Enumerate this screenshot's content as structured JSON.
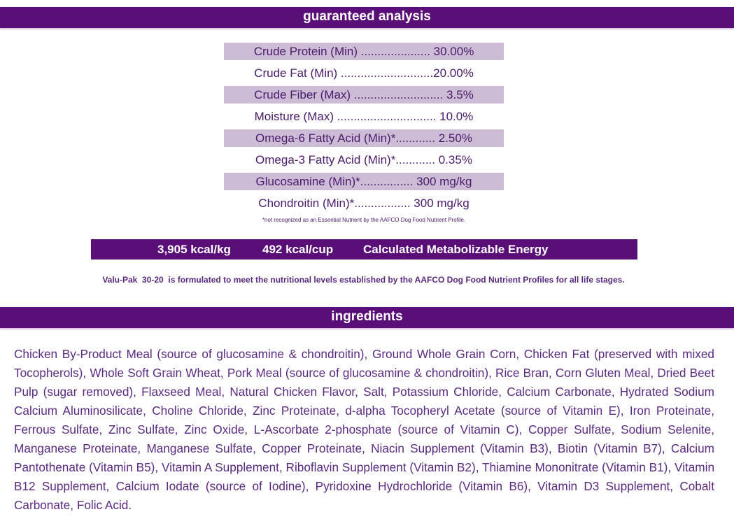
{
  "analysis": {
    "title": "guaranteed analysis",
    "rows": [
      {
        "text": "Crude Protein (Min) ..................... 30.00%"
      },
      {
        "text": "Crude Fat (Min) ............................20.00%"
      },
      {
        "text": "Crude Fiber (Max) ........................... 3.5%"
      },
      {
        "text": "Moisture (Max) ..............................  10.0%"
      },
      {
        "text": "Omega-6 Fatty Acid (Min)*............  2.50%"
      },
      {
        "text": "Omega-3 Fatty Acid (Min)*............  0.35%"
      },
      {
        "text": "Glucosamine (Min)*................ 300 mg/kg"
      },
      {
        "text": "Chondroitin (Min)*................. 300 mg/kg"
      }
    ],
    "footnote": "*not recognized as an Essential Nutrient by the AAFCO Dog Food Nutrient Profile."
  },
  "energy": {
    "kcal_per_kg": "3,905 kcal/kg",
    "kcal_per_cup": "492 kcal/cup",
    "label": "Calculated Metabolizable Energy"
  },
  "statement": "Valu-Pak  30-20  is formulated to meet the nutritional levels established by the AAFCO Dog Food Nutrient Profiles for all life stages.",
  "ingredients": {
    "title": "ingredients",
    "text": "Chicken By-Product Meal (source of glucosamine & chondroitin), Ground Whole Grain Corn, Chicken Fat (preserved with mixed Tocopherols), Whole Soft Grain Wheat, Pork Meal (source of glucosamine & chondroitin), Rice Bran, Corn Gluten Meal, Dried Beet Pulp (sugar removed), Flaxseed Meal, Natural Chicken Flavor, Salt, Potassium Chloride, Calcium Carbonate, Hydrated Sodium Calcium Aluminosilicate, Choline Chloride, Zinc Proteinate, d-alpha Tocopheryl Acetate (source of Vitamin E), Iron Proteinate, Ferrous Sulfate, Zinc Sulfate, Zinc Oxide, L-Ascorbate 2-phosphate (source of Vitamin C), Copper Sulfate, Sodium Selenite, Manganese Proteinate, Manganese Sulfate, Copper Proteinate, Niacin Supplement (Vitamin B3), Biotin (Vitamin B7), Calcium Pantothenate (Vitamin B5), Vitamin A Supplement, Riboflavin Supplement (Vitamin B2), Thiamine Mononitrate (Vitamin B1), Vitamin B12 Supplement, Calcium Iodate (source of Iodine), Pyridoxine Hydrochloride (Vitamin B6), Vitamin D3 Supplement, Cobalt Carbonate, Folic Acid."
  }
}
